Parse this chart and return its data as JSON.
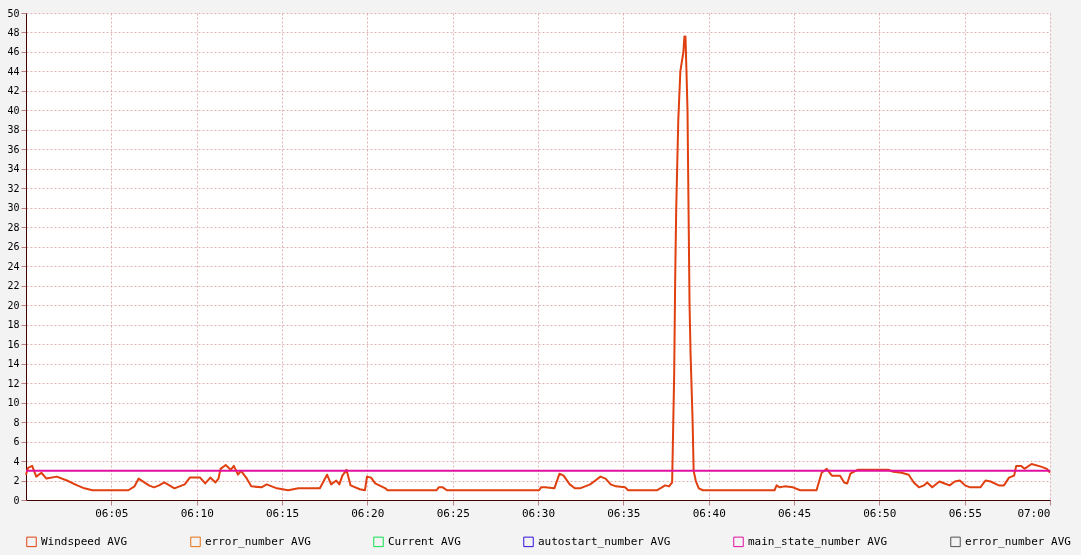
{
  "chart_data": {
    "type": "line",
    "xlim": [
      6,
      7
    ],
    "ylim": [
      0,
      50
    ],
    "xticks": [
      {
        "value": 6.0833,
        "label": "06:05"
      },
      {
        "value": 6.1667,
        "label": "06:10"
      },
      {
        "value": 6.25,
        "label": "06:15"
      },
      {
        "value": 6.3333,
        "label": "06:20"
      },
      {
        "value": 6.4167,
        "label": "06:25"
      },
      {
        "value": 6.5,
        "label": "06:30"
      },
      {
        "value": 6.5833,
        "label": "06:35"
      },
      {
        "value": 6.6667,
        "label": "06:40"
      },
      {
        "value": 6.75,
        "label": "06:45"
      },
      {
        "value": 6.8333,
        "label": "06:50"
      },
      {
        "value": 6.9167,
        "label": "06:55"
      },
      {
        "value": 7,
        "label": "07:00"
      }
    ],
    "yticks": [
      0,
      2,
      4,
      6,
      8,
      10,
      12,
      14,
      16,
      18,
      20,
      22,
      24,
      26,
      28,
      30,
      32,
      34,
      36,
      38,
      40,
      42,
      44,
      46,
      48,
      50
    ],
    "grid": true,
    "legend": "bottom",
    "marker": "none",
    "line_style": "solid",
    "series": [
      {
        "name": "Windspeed AVG",
        "color": "#e04010",
        "x": [
          6.0,
          6.002,
          6.006,
          6.01,
          6.015,
          6.02,
          6.03,
          6.04,
          6.05,
          6.057,
          6.065,
          6.1,
          6.106,
          6.11,
          6.12,
          6.125,
          6.13,
          6.135,
          6.145,
          6.15,
          6.155,
          6.16,
          6.17,
          6.175,
          6.18,
          6.185,
          6.188,
          6.19,
          6.195,
          6.2,
          6.203,
          6.207,
          6.21,
          6.215,
          6.22,
          6.23,
          6.235,
          6.245,
          6.256,
          6.266,
          6.281,
          6.287,
          6.291,
          6.294,
          6.298,
          6.303,
          6.306,
          6.309,
          6.313,
          6.317,
          6.326,
          6.331,
          6.333,
          6.337,
          6.341,
          6.351,
          6.353,
          6.401,
          6.403,
          6.407,
          6.411,
          6.501,
          6.503,
          6.507,
          6.516,
          6.521,
          6.525,
          6.531,
          6.536,
          6.541,
          6.546,
          6.551,
          6.556,
          6.561,
          6.566,
          6.571,
          6.576,
          6.585,
          6.588,
          6.616,
          6.621,
          6.624,
          6.628,
          6.631,
          6.633,
          6.634,
          6.635,
          6.637,
          6.639,
          6.642,
          6.643,
          6.644,
          6.645,
          6.646,
          6.647,
          6.648,
          6.649,
          6.651,
          6.652,
          6.654,
          6.657,
          6.661,
          6.731,
          6.733,
          6.736,
          6.741,
          6.749,
          6.756,
          6.772,
          6.777,
          6.782,
          6.787,
          6.795,
          6.799,
          6.802,
          6.805,
          6.812,
          6.842,
          6.847,
          6.855,
          6.862,
          6.867,
          6.872,
          6.877,
          6.88,
          6.885,
          6.892,
          6.897,
          6.902,
          6.907,
          6.912,
          6.917,
          6.922,
          6.932,
          6.937,
          6.942,
          6.95,
          6.955,
          6.96,
          6.965,
          6.967,
          6.972,
          6.975,
          6.982,
          6.992,
          6.997,
          7.0
        ],
        "values": [
          2.6,
          3.3,
          3.5,
          2.4,
          2.8,
          2.2,
          2.4,
          2.0,
          1.5,
          1.2,
          1.0,
          1.0,
          1.4,
          2.2,
          1.5,
          1.3,
          1.5,
          1.8,
          1.2,
          1.4,
          1.6,
          2.3,
          2.3,
          1.7,
          2.3,
          1.8,
          2.2,
          3.2,
          3.6,
          3.1,
          3.5,
          2.6,
          3.0,
          2.3,
          1.4,
          1.3,
          1.6,
          1.2,
          1.0,
          1.2,
          1.2,
          1.2,
          2.0,
          2.6,
          1.6,
          2.0,
          1.6,
          2.5,
          3.1,
          1.5,
          1.1,
          1.0,
          2.4,
          2.3,
          1.7,
          1.2,
          1.0,
          1.0,
          1.3,
          1.3,
          1.0,
          1.0,
          1.3,
          1.3,
          1.2,
          2.7,
          2.5,
          1.6,
          1.2,
          1.2,
          1.4,
          1.6,
          2.0,
          2.4,
          2.2,
          1.6,
          1.4,
          1.3,
          1.0,
          1.0,
          1.3,
          1.5,
          1.4,
          1.8,
          13,
          23,
          30,
          39,
          44,
          46,
          47.6,
          47.6,
          44,
          40,
          30,
          20,
          15,
          8,
          3,
          2,
          1.2,
          1.0,
          1.0,
          1.5,
          1.3,
          1.4,
          1.3,
          1.0,
          1.0,
          2.8,
          3.2,
          2.5,
          2.5,
          1.8,
          1.7,
          2.7,
          3.1,
          3.1,
          2.9,
          2.8,
          2.6,
          1.8,
          1.3,
          1.5,
          1.8,
          1.3,
          1.9,
          1.7,
          1.5,
          1.9,
          2.0,
          1.5,
          1.3,
          1.3,
          2.0,
          1.9,
          1.5,
          1.5,
          2.3,
          2.5,
          3.5,
          3.5,
          3.2,
          3.7,
          3.4,
          3.2,
          2.8
        ]
      },
      {
        "name": "error_number AVG",
        "color": "#e87010"
      },
      {
        "name": "Current AVG",
        "color": "#10e050"
      },
      {
        "name": "autostart_number AVG",
        "color": "#3010e0"
      },
      {
        "name": "main_state_number AVG",
        "color": "#e010a0",
        "x": [
          6,
          7
        ],
        "values": [
          3,
          3
        ]
      },
      {
        "name": "error_number AVG",
        "color": "#505050"
      }
    ]
  }
}
